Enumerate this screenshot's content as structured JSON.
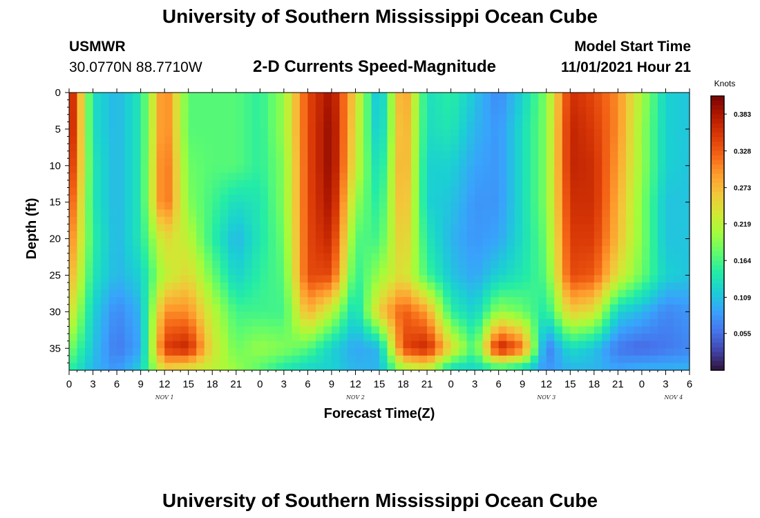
{
  "page": {
    "title": "University of Southern Mississippi Ocean Cube",
    "station": "USMWR",
    "coords": "30.0770N  88.7710W",
    "model_start_label": "Model Start Time",
    "model_start_value": "11/01/2021 Hour 21",
    "chart_title": "2-D Currents Speed-Magnitude",
    "footer_title": "University of Southern Mississippi Ocean Cube"
  },
  "chart_data": {
    "type": "heatmap",
    "title": "2-D Currents Speed-Magnitude",
    "xlabel": "Forecast Time(Z)",
    "ylabel": "Depth (ft)",
    "x_unit": "hours since 11/01/2021 00Z",
    "xlim": [
      0,
      78
    ],
    "ylim": [
      38,
      0
    ],
    "x_ticks": [
      "0",
      "3",
      "6",
      "9",
      "12",
      "15",
      "18",
      "21",
      "0",
      "3",
      "6",
      "9",
      "12",
      "15",
      "18",
      "21",
      "0",
      "3",
      "6",
      "9",
      "12",
      "15",
      "18",
      "21",
      "0",
      "3",
      "6"
    ],
    "y_ticks": [
      0,
      5,
      10,
      15,
      20,
      25,
      30,
      35
    ],
    "day_labels": [
      {
        "label": "NOV 1",
        "hour": 12
      },
      {
        "label": "NOV 2",
        "hour": 36
      },
      {
        "label": "NOV 3",
        "hour": 60
      },
      {
        "label": "NOV 4",
        "hour": 76
      }
    ],
    "colorbar": {
      "unit": "Knots",
      "min": 0.0,
      "max": 0.41,
      "ticks": [
        "0.383",
        "0.328",
        "0.273",
        "0.219",
        "0.164",
        "0.109",
        "0.055"
      ]
    },
    "palette": [
      "#30123b",
      "#4145ab",
      "#4675ed",
      "#39a2fc",
      "#1bcfd4",
      "#24eca6",
      "#61fc6c",
      "#a4fc3b",
      "#d1e834",
      "#f3c63a",
      "#fe9b2d",
      "#f36315",
      "#d93806",
      "#b11901",
      "#7a0403"
    ],
    "depths_ft": [
      0,
      5,
      10,
      15,
      20,
      25,
      30,
      35,
      38
    ],
    "hours": [
      0,
      3,
      6,
      9,
      12,
      15,
      18,
      21,
      24,
      27,
      30,
      33,
      36,
      39,
      42,
      45,
      48,
      51,
      54,
      57,
      60,
      63,
      66,
      69,
      72,
      75,
      78
    ],
    "values": [
      [
        0.4,
        0.13,
        0.1,
        0.14,
        0.32,
        0.17,
        0.17,
        0.17,
        0.15,
        0.2,
        0.34,
        0.39,
        0.25,
        0.09,
        0.31,
        0.13,
        0.15,
        0.11,
        0.07,
        0.12,
        0.19,
        0.36,
        0.34,
        0.3,
        0.21,
        0.12,
        0.11
      ],
      [
        0.4,
        0.13,
        0.1,
        0.14,
        0.32,
        0.17,
        0.17,
        0.17,
        0.15,
        0.2,
        0.34,
        0.4,
        0.24,
        0.1,
        0.3,
        0.13,
        0.14,
        0.1,
        0.08,
        0.13,
        0.19,
        0.37,
        0.35,
        0.3,
        0.2,
        0.12,
        0.11
      ],
      [
        0.38,
        0.14,
        0.1,
        0.14,
        0.33,
        0.18,
        0.17,
        0.17,
        0.15,
        0.19,
        0.34,
        0.4,
        0.23,
        0.12,
        0.3,
        0.12,
        0.12,
        0.09,
        0.08,
        0.13,
        0.19,
        0.37,
        0.36,
        0.29,
        0.2,
        0.12,
        0.11
      ],
      [
        0.35,
        0.14,
        0.1,
        0.14,
        0.33,
        0.19,
        0.16,
        0.13,
        0.14,
        0.19,
        0.34,
        0.39,
        0.2,
        0.14,
        0.29,
        0.12,
        0.11,
        0.08,
        0.08,
        0.13,
        0.19,
        0.36,
        0.36,
        0.28,
        0.19,
        0.11,
        0.11
      ],
      [
        0.32,
        0.15,
        0.1,
        0.14,
        0.25,
        0.22,
        0.15,
        0.1,
        0.14,
        0.18,
        0.34,
        0.37,
        0.17,
        0.16,
        0.27,
        0.14,
        0.1,
        0.08,
        0.09,
        0.13,
        0.18,
        0.35,
        0.35,
        0.27,
        0.19,
        0.11,
        0.11
      ],
      [
        0.29,
        0.14,
        0.1,
        0.12,
        0.22,
        0.25,
        0.18,
        0.12,
        0.15,
        0.17,
        0.34,
        0.34,
        0.15,
        0.2,
        0.25,
        0.16,
        0.11,
        0.09,
        0.12,
        0.14,
        0.17,
        0.34,
        0.33,
        0.24,
        0.18,
        0.12,
        0.11
      ],
      [
        0.25,
        0.12,
        0.07,
        0.1,
        0.3,
        0.3,
        0.22,
        0.16,
        0.16,
        0.16,
        0.28,
        0.22,
        0.12,
        0.26,
        0.33,
        0.29,
        0.15,
        0.12,
        0.2,
        0.18,
        0.14,
        0.26,
        0.24,
        0.12,
        0.1,
        0.07,
        0.08
      ],
      [
        0.19,
        0.11,
        0.06,
        0.09,
        0.35,
        0.37,
        0.24,
        0.18,
        0.2,
        0.19,
        0.17,
        0.12,
        0.09,
        0.1,
        0.34,
        0.37,
        0.25,
        0.16,
        0.38,
        0.32,
        0.06,
        0.13,
        0.11,
        0.06,
        0.05,
        0.06,
        0.07
      ],
      [
        0.15,
        0.1,
        0.08,
        0.12,
        0.25,
        0.23,
        0.22,
        0.2,
        0.17,
        0.14,
        0.12,
        0.12,
        0.1,
        0.1,
        0.2,
        0.22,
        0.12,
        0.12,
        0.14,
        0.12,
        0.08,
        0.1,
        0.1,
        0.09,
        0.1,
        0.1,
        0.1
      ]
    ]
  }
}
